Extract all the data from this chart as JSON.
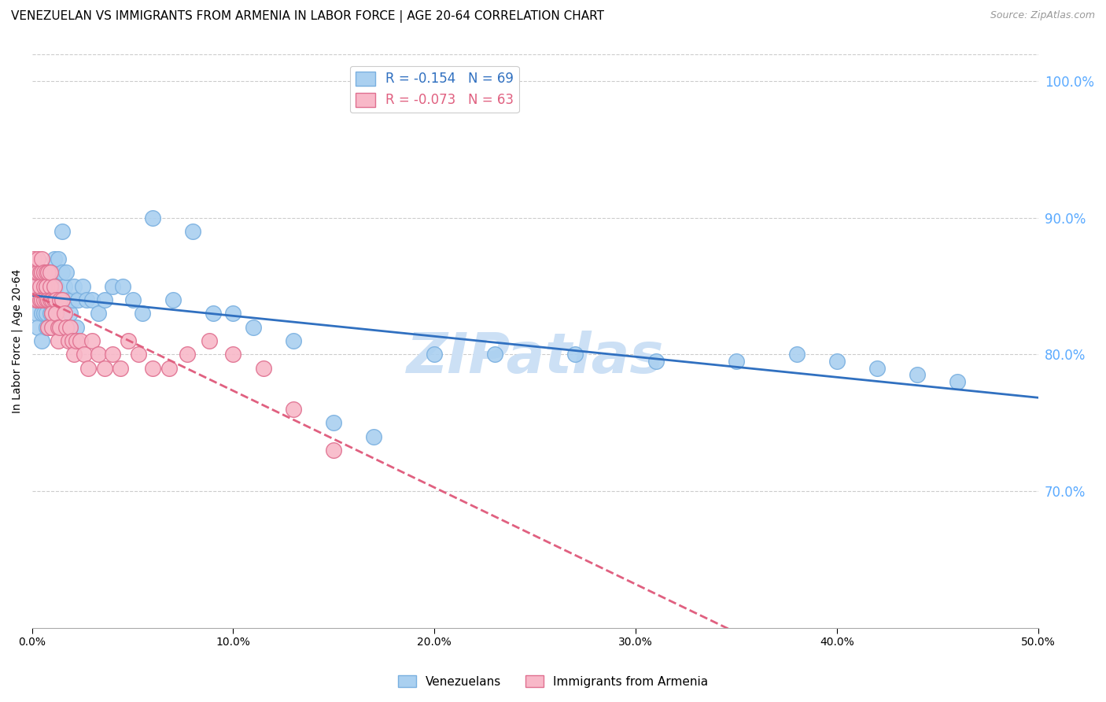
{
  "title": "VENEZUELAN VS IMMIGRANTS FROM ARMENIA IN LABOR FORCE | AGE 20-64 CORRELATION CHART",
  "source": "Source: ZipAtlas.com",
  "ylabel": "In Labor Force | Age 20-64",
  "xlim": [
    0.0,
    0.5
  ],
  "ylim": [
    0.6,
    1.02
  ],
  "ytick_vals": [
    0.7,
    0.8,
    0.9,
    1.0
  ],
  "xtick_vals": [
    0.0,
    0.1,
    0.2,
    0.3,
    0.4,
    0.5
  ],
  "grid_color": "#cccccc",
  "watermark": "ZIPatlas",
  "watermark_color": "#cce0f5",
  "right_axis_color": "#5aaaff",
  "venezuelans": {
    "name": "Venezuelans",
    "R": -0.154,
    "N": 69,
    "marker_facecolor": "#aad0f0",
    "marker_edgecolor": "#7ab0e0",
    "line_color": "#3070c0",
    "line_style": "-",
    "x": [
      0.001,
      0.002,
      0.002,
      0.003,
      0.003,
      0.004,
      0.004,
      0.005,
      0.005,
      0.005,
      0.006,
      0.006,
      0.006,
      0.007,
      0.007,
      0.007,
      0.008,
      0.008,
      0.008,
      0.009,
      0.009,
      0.01,
      0.01,
      0.01,
      0.011,
      0.011,
      0.012,
      0.012,
      0.013,
      0.013,
      0.014,
      0.015,
      0.015,
      0.016,
      0.017,
      0.018,
      0.019,
      0.02,
      0.021,
      0.022,
      0.023,
      0.025,
      0.027,
      0.03,
      0.033,
      0.036,
      0.04,
      0.045,
      0.05,
      0.055,
      0.06,
      0.07,
      0.08,
      0.09,
      0.1,
      0.11,
      0.13,
      0.15,
      0.17,
      0.2,
      0.23,
      0.27,
      0.31,
      0.35,
      0.38,
      0.4,
      0.42,
      0.44,
      0.46
    ],
    "y": [
      0.84,
      0.83,
      0.85,
      0.84,
      0.82,
      0.86,
      0.84,
      0.85,
      0.83,
      0.81,
      0.84,
      0.83,
      0.85,
      0.84,
      0.83,
      0.82,
      0.85,
      0.84,
      0.82,
      0.83,
      0.82,
      0.84,
      0.83,
      0.86,
      0.84,
      0.87,
      0.85,
      0.83,
      0.84,
      0.87,
      0.84,
      0.86,
      0.89,
      0.85,
      0.86,
      0.84,
      0.83,
      0.84,
      0.85,
      0.82,
      0.84,
      0.85,
      0.84,
      0.84,
      0.83,
      0.84,
      0.85,
      0.85,
      0.84,
      0.83,
      0.9,
      0.84,
      0.89,
      0.83,
      0.83,
      0.82,
      0.81,
      0.75,
      0.74,
      0.8,
      0.8,
      0.8,
      0.795,
      0.795,
      0.8,
      0.795,
      0.79,
      0.785,
      0.78
    ]
  },
  "armenia": {
    "name": "Immigrants from Armenia",
    "R": -0.073,
    "N": 63,
    "marker_facecolor": "#f8b8c8",
    "marker_edgecolor": "#e07090",
    "line_color": "#e06080",
    "line_style": "--",
    "x": [
      0.001,
      0.001,
      0.002,
      0.002,
      0.003,
      0.003,
      0.003,
      0.004,
      0.004,
      0.004,
      0.005,
      0.005,
      0.005,
      0.006,
      0.006,
      0.006,
      0.007,
      0.007,
      0.007,
      0.007,
      0.008,
      0.008,
      0.008,
      0.009,
      0.009,
      0.009,
      0.01,
      0.01,
      0.01,
      0.011,
      0.011,
      0.012,
      0.012,
      0.013,
      0.013,
      0.014,
      0.014,
      0.015,
      0.016,
      0.017,
      0.018,
      0.019,
      0.02,
      0.021,
      0.022,
      0.024,
      0.026,
      0.028,
      0.03,
      0.033,
      0.036,
      0.04,
      0.044,
      0.048,
      0.053,
      0.06,
      0.068,
      0.077,
      0.088,
      0.1,
      0.115,
      0.13,
      0.15
    ],
    "y": [
      0.87,
      0.85,
      0.86,
      0.84,
      0.86,
      0.84,
      0.87,
      0.86,
      0.84,
      0.85,
      0.86,
      0.87,
      0.84,
      0.85,
      0.86,
      0.84,
      0.85,
      0.86,
      0.84,
      0.85,
      0.86,
      0.84,
      0.82,
      0.85,
      0.84,
      0.86,
      0.84,
      0.83,
      0.82,
      0.84,
      0.85,
      0.84,
      0.83,
      0.82,
      0.81,
      0.84,
      0.82,
      0.84,
      0.83,
      0.82,
      0.81,
      0.82,
      0.81,
      0.8,
      0.81,
      0.81,
      0.8,
      0.79,
      0.81,
      0.8,
      0.79,
      0.8,
      0.79,
      0.81,
      0.8,
      0.79,
      0.79,
      0.8,
      0.81,
      0.8,
      0.79,
      0.76,
      0.73
    ]
  },
  "legend_venezuelans": "R = -0.154   N = 69",
  "legend_armenia": "R = -0.073   N = 63",
  "bottom_legend": [
    "Venezuelans",
    "Immigrants from Armenia"
  ]
}
